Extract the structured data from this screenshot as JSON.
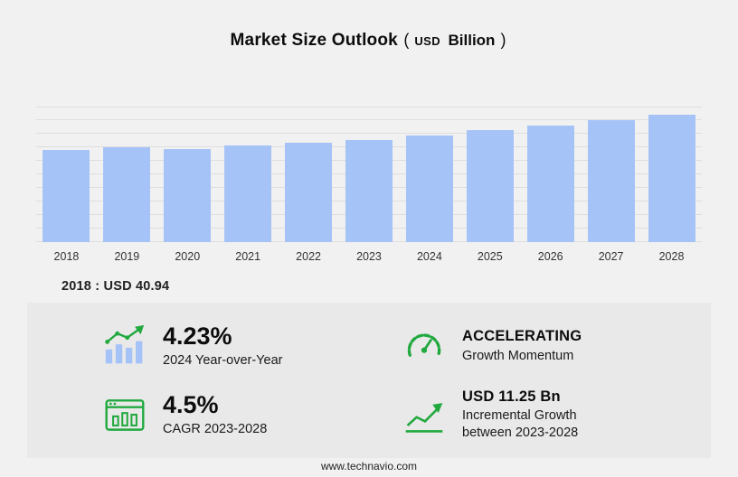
{
  "header": {
    "title": "Market Size Outlook",
    "paren_open": "(",
    "currency": "USD",
    "unit": "Billion",
    "paren_close": ")"
  },
  "chart_data": {
    "type": "bar",
    "title": "Market Size Outlook (USD Billion)",
    "categories": [
      "2018",
      "2019",
      "2020",
      "2021",
      "2022",
      "2023",
      "2024",
      "2025",
      "2026",
      "2027",
      "2028"
    ],
    "values": [
      40.94,
      42.1,
      41.5,
      42.9,
      44.2,
      45.7,
      47.6,
      49.8,
      52.0,
      54.4,
      56.9
    ],
    "xlabel": "",
    "ylabel": "USD Billion",
    "ylim": [
      0,
      60
    ],
    "grid": true,
    "legend": false,
    "bar_color": "#A6C3F7"
  },
  "annotation": "2018 : USD  40.94",
  "stats": [
    {
      "icon": "trend-bars-icon",
      "value": "4.23%",
      "label": "2024 Year-over-Year"
    },
    {
      "icon": "speedometer-icon",
      "value": "ACCELERATING",
      "label": "Growth Momentum"
    },
    {
      "icon": "chart-window-icon",
      "value": "4.5%",
      "label": "CAGR 2023-2028"
    },
    {
      "icon": "growth-arrow-icon",
      "value": "USD 11.25 Bn",
      "label": "Incremental Growth between 2023-2028"
    }
  ],
  "footer": "www.technavio.com",
  "colors": {
    "accent_green": "#21A93F",
    "bar_blue": "#A6C3F7",
    "panel_bg": "#E9E9E9",
    "page_bg": "#F1F1F1"
  }
}
